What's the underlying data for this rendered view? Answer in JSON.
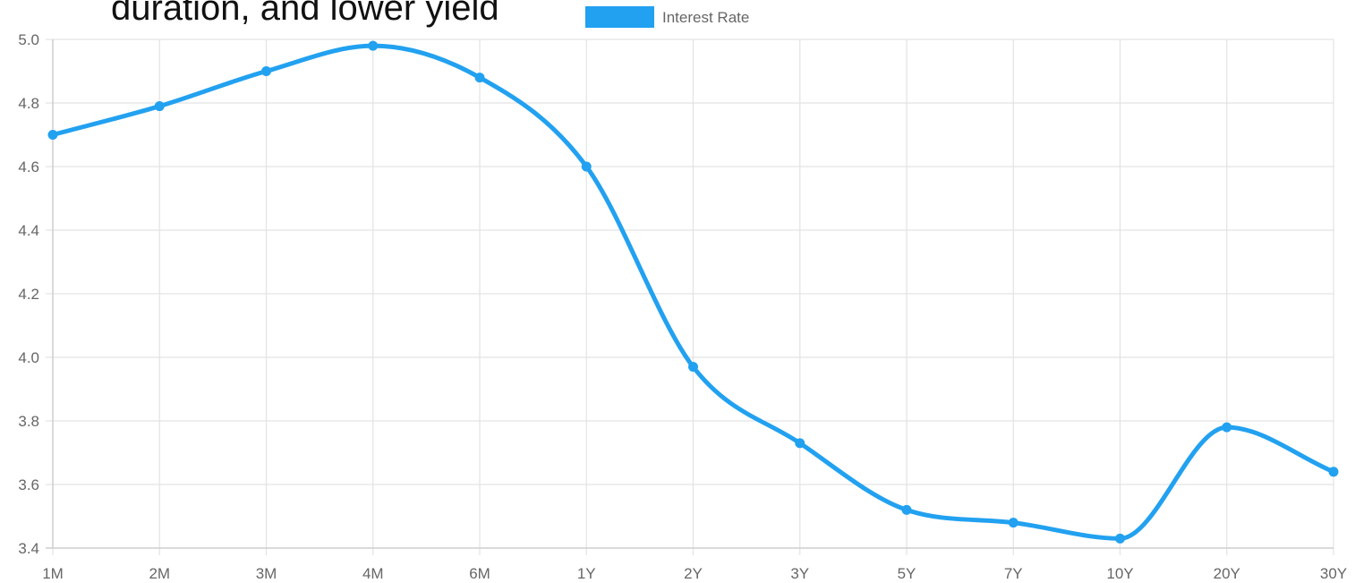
{
  "heading": {
    "text": "duration, and lower yield"
  },
  "chart_data": {
    "type": "line",
    "title": "",
    "xlabel": "",
    "ylabel": "",
    "categories": [
      "1M",
      "2M",
      "3M",
      "4M",
      "6M",
      "1Y",
      "2Y",
      "3Y",
      "5Y",
      "7Y",
      "10Y",
      "20Y",
      "30Y"
    ],
    "series": [
      {
        "name": "Interest Rate",
        "values": [
          4.7,
          4.79,
          4.9,
          4.98,
          4.88,
          4.6,
          3.97,
          3.73,
          3.52,
          3.48,
          3.43,
          3.78,
          3.64
        ],
        "color": "#22a1f0"
      }
    ],
    "ylim": [
      3.4,
      5.0
    ],
    "yticks": [
      "3.4",
      "3.6",
      "3.8",
      "4.0",
      "4.2",
      "4.4",
      "4.6",
      "4.8",
      "5.0"
    ],
    "grid": true,
    "legend_position": "top-center",
    "curve": "smooth"
  }
}
